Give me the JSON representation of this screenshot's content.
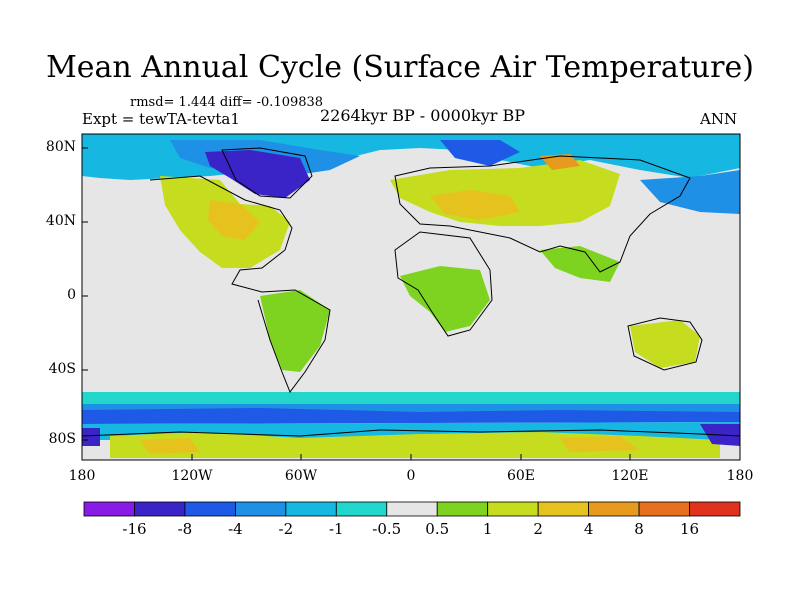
{
  "title": "Mean Annual Cycle (Surface Air Temperature)",
  "stats": "rmsd= 1.444 diff= -0.109838",
  "experiment": "Expt = tewTA-tevta1",
  "period": "2264kyr BP - 0000kyr BP",
  "season": "ANN",
  "lat_labels": [
    "80N",
    "40N",
    "0",
    "40S",
    "80S"
  ],
  "lon_labels": [
    "180",
    "120W",
    "60W",
    "0",
    "60E",
    "120E",
    "180"
  ],
  "colorbar": {
    "labels": [
      "-16",
      "-8",
      "-4",
      "-2",
      "-1",
      "-0.5",
      "0.5",
      "1",
      "2",
      "4",
      "8",
      "16"
    ],
    "colors": [
      "#8a1ae6",
      "#3a23c7",
      "#1f5ae6",
      "#1e90e6",
      "#16b7e0",
      "#22d6cc",
      "#e6e6e6",
      "#7ed321",
      "#c6dc1e",
      "#e6c21e",
      "#e69a1e",
      "#e6701e",
      "#e0331e"
    ]
  },
  "map_colors": {
    "ocean": "#e6e6e6",
    "deep_cold": "#3a23c7",
    "blue": "#1f5ae6",
    "light_blue": "#1e90e6",
    "cyan": "#16b7e0",
    "teal": "#22d6cc",
    "green": "#7ed321",
    "yellow_green": "#c6dc1e",
    "amber": "#e6c21e",
    "orange": "#e69a1e",
    "red_orange": "#e6701e",
    "purple": "#8a1ae6"
  }
}
